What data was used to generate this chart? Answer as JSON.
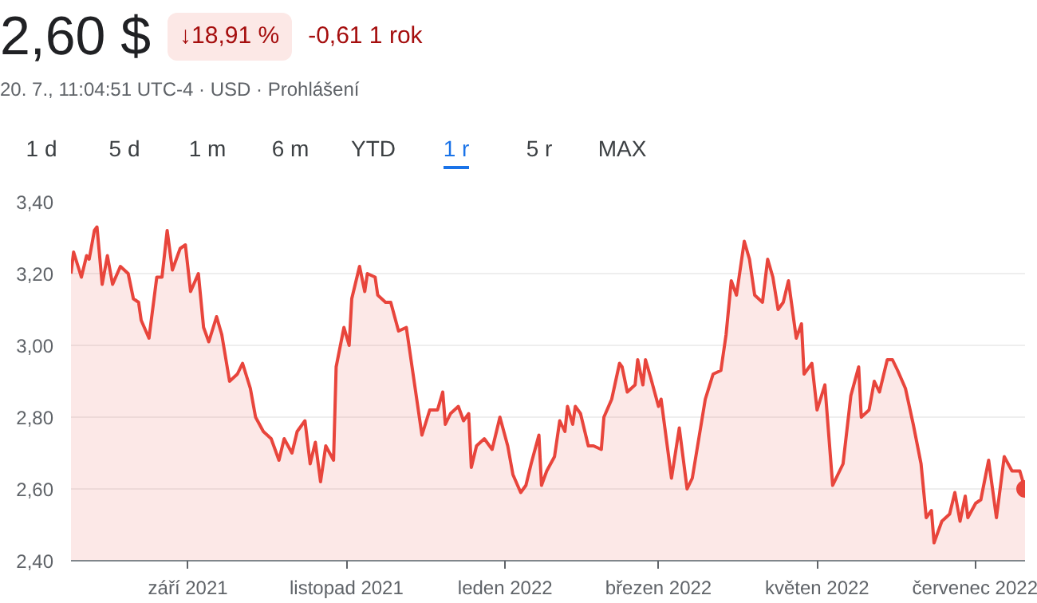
{
  "chart_data": {
    "type": "area",
    "title": "2,60 $",
    "subtitle": "20. 7., 11:04:51 UTC-4 · USD · Prohlášení",
    "annotations": [
      "↓18,91 %",
      "-0,61 1 rok",
      "1 d",
      "5 d",
      "1 m",
      "6 m",
      "YTD",
      "1 r",
      "5 r",
      "MAX"
    ],
    "x": [
      "2021-07-18",
      "2021-07-19",
      "2021-07-22",
      "2021-07-24",
      "2021-07-25",
      "2021-07-27",
      "2021-07-28",
      "2021-07-30",
      "2021-08-01",
      "2021-08-03",
      "2021-08-06",
      "2021-08-09",
      "2021-08-11",
      "2021-08-13",
      "2021-08-14",
      "2021-08-17",
      "2021-08-20",
      "2021-08-22",
      "2021-08-24",
      "2021-08-26",
      "2021-08-29",
      "2021-08-31",
      "2021-09-02",
      "2021-09-05",
      "2021-09-07",
      "2021-09-09",
      "2021-09-12",
      "2021-09-14",
      "2021-09-17",
      "2021-09-20",
      "2021-09-22",
      "2021-09-25",
      "2021-09-27",
      "2021-09-30",
      "2021-10-03",
      "2021-10-06",
      "2021-10-08",
      "2021-10-11",
      "2021-10-13",
      "2021-10-16",
      "2021-10-18",
      "2021-10-20",
      "2021-10-22",
      "2021-10-24",
      "2021-10-27",
      "2021-10-28",
      "2021-10-31",
      "2021-11-02",
      "2021-11-03",
      "2021-11-06",
      "2021-11-08",
      "2021-11-09",
      "2021-11-12",
      "2021-11-13",
      "2021-11-16",
      "2021-11-18",
      "2021-11-21",
      "2021-11-24",
      "2021-11-27",
      "2021-11-30",
      "2021-12-03",
      "2021-12-06",
      "2021-12-08",
      "2021-12-09",
      "2021-12-11",
      "2021-12-14",
      "2021-12-16",
      "2021-12-18",
      "2021-12-19",
      "2021-12-21",
      "2021-12-24",
      "2021-12-27",
      "2021-12-30",
      "2022-01-02",
      "2022-01-04",
      "2022-01-07",
      "2022-01-09",
      "2022-01-11",
      "2022-01-14",
      "2022-01-15",
      "2022-01-17",
      "2022-01-20",
      "2022-01-22",
      "2022-01-24",
      "2022-01-25",
      "2022-01-27",
      "2022-01-28",
      "2022-01-30",
      "2022-02-02",
      "2022-02-04",
      "2022-02-07",
      "2022-02-08",
      "2022-02-11",
      "2022-02-14",
      "2022-02-15",
      "2022-02-17",
      "2022-02-20",
      "2022-02-21",
      "2022-02-23",
      "2022-02-24",
      "2022-02-26",
      "2022-03-01",
      "2022-03-02",
      "2022-03-06",
      "2022-03-09",
      "2022-03-12",
      "2022-03-14",
      "2022-03-19",
      "2022-03-22",
      "2022-03-25",
      "2022-03-27",
      "2022-03-29",
      "2022-03-31",
      "2022-04-03",
      "2022-04-05",
      "2022-04-07",
      "2022-04-10",
      "2022-04-12",
      "2022-04-14",
      "2022-04-16",
      "2022-04-18",
      "2022-04-20",
      "2022-04-23",
      "2022-04-25",
      "2022-04-26",
      "2022-04-29",
      "2022-05-01",
      "2022-05-04",
      "2022-05-07",
      "2022-05-09",
      "2022-05-11",
      "2022-05-14",
      "2022-05-17",
      "2022-05-18",
      "2022-05-21",
      "2022-05-23",
      "2022-05-25",
      "2022-05-28",
      "2022-05-30",
      "2022-06-01",
      "2022-06-04",
      "2022-06-07",
      "2022-06-10",
      "2022-06-12",
      "2022-06-14",
      "2022-06-15",
      "2022-06-18",
      "2022-06-21",
      "2022-06-23",
      "2022-06-25",
      "2022-06-27",
      "2022-06-28",
      "2022-07-01",
      "2022-07-03",
      "2022-07-06",
      "2022-07-09",
      "2022-07-12",
      "2022-07-15",
      "2022-07-18",
      "2022-07-20"
    ],
    "series": [
      {
        "color": "#e8453c",
        "values": [
          3.2,
          3.26,
          3.19,
          3.25,
          3.24,
          3.32,
          3.33,
          3.17,
          3.25,
          3.17,
          3.22,
          3.2,
          3.13,
          3.12,
          3.07,
          3.02,
          3.19,
          3.19,
          3.32,
          3.21,
          3.27,
          3.28,
          3.15,
          3.2,
          3.05,
          3.01,
          3.08,
          3.03,
          2.9,
          2.92,
          2.95,
          2.88,
          2.8,
          2.76,
          2.74,
          2.68,
          2.74,
          2.7,
          2.76,
          2.79,
          2.67,
          2.73,
          2.62,
          2.72,
          2.68,
          2.94,
          3.05,
          3.0,
          3.13,
          3.22,
          3.15,
          3.2,
          3.19,
          3.14,
          3.12,
          3.12,
          3.04,
          3.05,
          2.9,
          2.75,
          2.82,
          2.82,
          2.87,
          2.78,
          2.81,
          2.83,
          2.79,
          2.81,
          2.66,
          2.72,
          2.74,
          2.71,
          2.8,
          2.72,
          2.64,
          2.59,
          2.61,
          2.67,
          2.75,
          2.61,
          2.65,
          2.69,
          2.79,
          2.76,
          2.83,
          2.78,
          2.83,
          2.81,
          2.72,
          2.72,
          2.71,
          2.8,
          2.85,
          2.95,
          2.94,
          2.87,
          2.89,
          2.96,
          2.89,
          2.96,
          2.91,
          2.83,
          2.85,
          2.63,
          2.77,
          2.6,
          2.63,
          2.85,
          2.92,
          2.93,
          3.03,
          3.18,
          3.14,
          3.29,
          3.24,
          3.14,
          3.12,
          3.24,
          3.19,
          3.1,
          3.12,
          3.18,
          3.02,
          3.06,
          2.92,
          2.95,
          2.82,
          2.89,
          2.61,
          2.64,
          2.67,
          2.86,
          2.94,
          2.8,
          2.82,
          2.9,
          2.87,
          2.96,
          2.96,
          2.93,
          2.88,
          2.78,
          2.67,
          2.52,
          2.54,
          2.45,
          2.51,
          2.53,
          2.59,
          2.51,
          2.58,
          2.52,
          2.56,
          2.57,
          2.68,
          2.52,
          2.69,
          2.65,
          2.65,
          2.6
        ]
      }
    ],
    "xlim": [
      "2021-07-18",
      "2022-07-20"
    ],
    "xticks": [
      {
        "value": "2021-09-01",
        "label": "září 2021"
      },
      {
        "value": "2021-11-01",
        "label": "listopad 2021"
      },
      {
        "value": "2022-01-01",
        "label": "leden 2022"
      },
      {
        "value": "2022-03-01",
        "label": "březen 2022"
      },
      {
        "value": "2022-05-01",
        "label": "květen 2022"
      },
      {
        "value": "2022-07-01",
        "label": "červenec 2022"
      }
    ],
    "ylim": [
      2.4,
      3.4
    ],
    "yticks": [
      {
        "value": 2.4,
        "label": "2,40"
      },
      {
        "value": 2.6,
        "label": "2,60"
      },
      {
        "value": 2.8,
        "label": "2,80"
      },
      {
        "value": 3.0,
        "label": "3,00"
      },
      {
        "value": 3.2,
        "label": "3,20"
      },
      {
        "value": 3.4,
        "label": "3,40"
      }
    ],
    "grid": "y",
    "marker": "none",
    "line_style": "solid"
  }
}
